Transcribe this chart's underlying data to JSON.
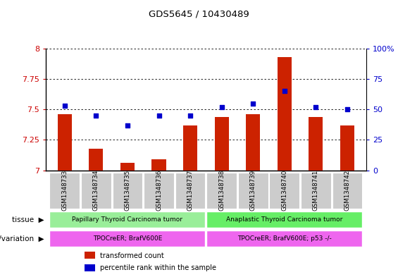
{
  "title": "GDS5645 / 10430489",
  "samples": [
    "GSM1348733",
    "GSM1348734",
    "GSM1348735",
    "GSM1348736",
    "GSM1348737",
    "GSM1348738",
    "GSM1348739",
    "GSM1348740",
    "GSM1348741",
    "GSM1348742"
  ],
  "bar_values": [
    7.46,
    7.18,
    7.06,
    7.09,
    7.37,
    7.44,
    7.46,
    7.93,
    7.44,
    7.37
  ],
  "dot_values": [
    53,
    45,
    37,
    45,
    45,
    52,
    55,
    65,
    52,
    50
  ],
  "ylim": [
    7.0,
    8.0
  ],
  "yticks": [
    7.0,
    7.25,
    7.5,
    7.75,
    8.0
  ],
  "ytick_labels": [
    "7",
    "7.25",
    "7.5",
    "7.75",
    "8"
  ],
  "y2lim": [
    0,
    100
  ],
  "y2ticks": [
    0,
    25,
    50,
    75,
    100
  ],
  "y2tick_labels": [
    "0",
    "25",
    "50",
    "75",
    "100%"
  ],
  "bar_color": "#cc2200",
  "dot_color": "#0000cc",
  "tissue_groups": [
    {
      "label": "Papillary Thyroid Carcinoma tumor",
      "start": 0,
      "end": 4,
      "color": "#99ee99"
    },
    {
      "label": "Anaplastic Thyroid Carcinoma tumor",
      "start": 5,
      "end": 9,
      "color": "#66ee66"
    }
  ],
  "genotype_groups": [
    {
      "label": "TPOCreER; BrafV600E",
      "start": 0,
      "end": 4,
      "color": "#ee66ee"
    },
    {
      "label": "TPOCreER; BrafV600E; p53 -/-",
      "start": 5,
      "end": 9,
      "color": "#ee66ee"
    }
  ],
  "tissue_label": "tissue",
  "genotype_label": "genotype/variation",
  "legend_items": [
    {
      "label": "transformed count",
      "color": "#cc2200"
    },
    {
      "label": "percentile rank within the sample",
      "color": "#0000cc"
    }
  ]
}
